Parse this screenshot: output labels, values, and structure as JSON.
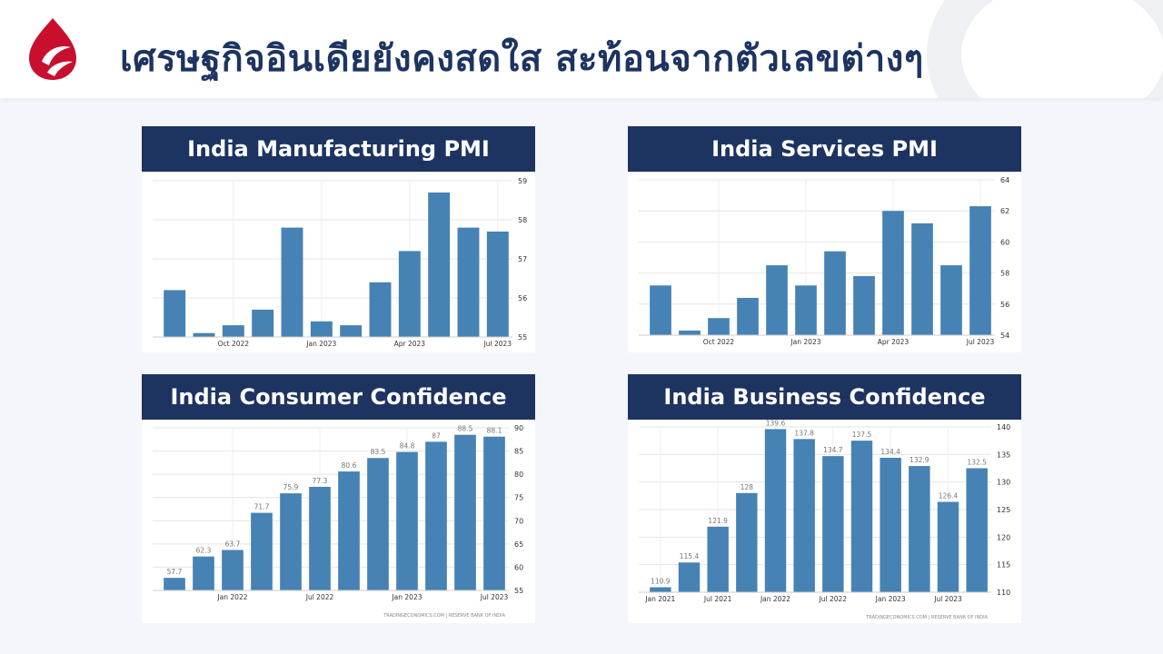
{
  "page": {
    "title": "เศรษฐกิจอินเดียยังคงสดใส สะท้อนจากตัวเลขต่างๆ",
    "colors": {
      "brand": "#1d3461",
      "accent": "#c8102e",
      "bar": "#4682b4"
    },
    "logo_icon": "flame-drop-logo-icon"
  },
  "chart_data": [
    {
      "type": "bar",
      "title": "India Manufacturing PMI",
      "x_tick_labels": [
        "Oct 2022",
        "Jan 2023",
        "Apr 2023",
        "Jul 2023"
      ],
      "x_tick_index": [
        2,
        5,
        8,
        11
      ],
      "values": [
        56.2,
        55.1,
        55.3,
        55.7,
        57.8,
        55.4,
        55.3,
        56.4,
        57.2,
        58.7,
        57.8,
        57.7
      ],
      "ylim": [
        55,
        59
      ],
      "y_ticks": [
        55,
        56,
        57,
        58,
        59
      ],
      "y_axis": "right",
      "grid": true
    },
    {
      "type": "bar",
      "title": "India Services PMI",
      "x_tick_labels": [
        "Oct 2022",
        "Jan 2023",
        "Apr 2023",
        "Jul 2023"
      ],
      "x_tick_index": [
        2,
        5,
        8,
        11
      ],
      "values": [
        57.2,
        54.3,
        55.1,
        56.4,
        58.5,
        57.2,
        59.4,
        57.8,
        62,
        61.2,
        58.5,
        62.3
      ],
      "ylim": [
        54,
        64
      ],
      "y_ticks": [
        54,
        56,
        58,
        60,
        62,
        64
      ],
      "y_axis": "right",
      "grid": true
    },
    {
      "type": "bar",
      "title": "India Consumer Confidence",
      "x_tick_labels": [
        "Jan 2022",
        "Jul 2022",
        "Jan 2023",
        "Jul 2023"
      ],
      "x_tick_index": [
        2,
        5,
        8,
        11
      ],
      "values": [
        57.7,
        62.3,
        63.7,
        71.7,
        75.9,
        77.3,
        80.6,
        83.5,
        84.8,
        87,
        88.5,
        88.1
      ],
      "data_labels": [
        "57.7",
        "62.3",
        "63.7",
        "71.7",
        "75.9",
        "77.3",
        "80.6",
        "83.5",
        "84.8",
        "87",
        "88.5",
        "88.1"
      ],
      "ylim": [
        55,
        90
      ],
      "y_ticks": [
        55,
        60,
        65,
        70,
        75,
        80,
        85,
        90
      ],
      "y_axis": "right",
      "grid": true,
      "source": "TRADINGECONOMICS.COM | RESERVE BANK OF INDIA"
    },
    {
      "type": "bar",
      "title": "India Business Confidence",
      "x_tick_labels": [
        "Jan 2021",
        "Jul 2021",
        "Jan 2022",
        "Jul 2022",
        "Jan 2023",
        "Jul 2023"
      ],
      "x_tick_index": [
        0,
        2,
        4,
        6,
        8,
        10
      ],
      "values": [
        110.9,
        115.4,
        121.9,
        128,
        139.6,
        137.8,
        134.7,
        137.5,
        134.4,
        132.9,
        126.4,
        132.5
      ],
      "data_labels": [
        "110.9",
        "115.4",
        "121.9",
        "128",
        "139.6",
        "137.8",
        "134.7",
        "137.5",
        "134.4",
        "132.9",
        "126.4",
        "132.5"
      ],
      "ylim": [
        110,
        140
      ],
      "y_ticks": [
        110,
        115,
        120,
        125,
        130,
        135,
        140
      ],
      "y_axis": "right",
      "grid": true,
      "source": "TRADINGECONOMICS.COM | RESERVE BANK OF INDIA"
    }
  ]
}
